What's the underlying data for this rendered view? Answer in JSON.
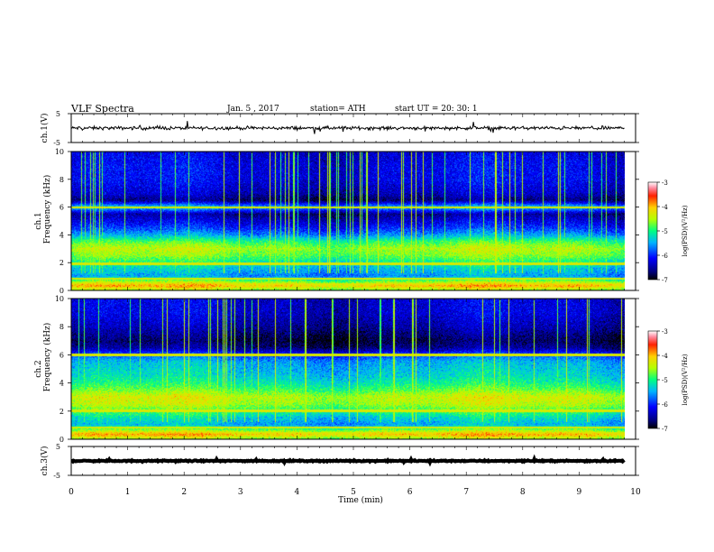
{
  "header": {
    "title": "VLF  Spectra",
    "date": "Jan.  5  , 2017",
    "station": "station= ATH",
    "start": "start  UT  =    20: 30: 1"
  },
  "axis_labels": {
    "ch1_wave": "ch.1(V)",
    "ch1_spec": [
      "ch.1",
      "Frequency  (kHz)"
    ],
    "ch2_spec": [
      "ch.2",
      "Frequency  (kHz)"
    ],
    "ch3_wave": "ch.3(V)",
    "time": "Time  (min)",
    "colorbar": "log(PSD)(V²/Hz)"
  },
  "chart_data": [
    {
      "type": "line",
      "name_label": "ch.1(V)",
      "xlabel": "Time  (min)",
      "ylabel": "ch.1(V)",
      "xlim": [
        0,
        10
      ],
      "ylim": [
        -5,
        5
      ],
      "yticks": [
        -5,
        5
      ],
      "data_span": [
        0,
        9.8
      ],
      "level": 0,
      "amplitude": 1.2
    },
    {
      "type": "heatmap",
      "ylabel": "ch.1 Frequency  (kHz)",
      "xlim": [
        0,
        10
      ],
      "ylim": [
        0,
        10
      ],
      "yticks": [
        0,
        2,
        4,
        6,
        8,
        10
      ],
      "data_span": [
        0,
        9.8
      ],
      "colorbar": {
        "label": "log(PSD)(V²/Hz)",
        "range": [
          -7,
          -3
        ],
        "ticks": [
          -3,
          -4,
          -5,
          -6,
          -7
        ]
      },
      "freq_profile": [
        {
          "f": 0.0,
          "v": -4.6
        },
        {
          "f": 0.3,
          "v": -4.0
        },
        {
          "f": 0.6,
          "v": -4.6
        },
        {
          "f": 1.0,
          "v": -5.6
        },
        {
          "f": 1.5,
          "v": -5.4
        },
        {
          "f": 2.0,
          "v": -5.1
        },
        {
          "f": 2.5,
          "v": -4.7
        },
        {
          "f": 3.0,
          "v": -4.5
        },
        {
          "f": 3.5,
          "v": -4.9
        },
        {
          "f": 4.0,
          "v": -5.6
        },
        {
          "f": 4.5,
          "v": -6.0
        },
        {
          "f": 5.0,
          "v": -6.3
        },
        {
          "f": 5.5,
          "v": -6.6
        },
        {
          "f": 6.0,
          "v": -5.4
        },
        {
          "f": 6.5,
          "v": -6.7
        },
        {
          "f": 7.0,
          "v": -6.4
        },
        {
          "f": 8.0,
          "v": -6.2
        },
        {
          "f": 9.0,
          "v": -6.2
        },
        {
          "f": 10.0,
          "v": -6.3
        }
      ],
      "tone_lines_khz": [
        0.4,
        0.8,
        6.0,
        1.9
      ]
    },
    {
      "type": "heatmap",
      "ylabel": "ch.2 Frequency  (kHz)",
      "xlim": [
        0,
        10
      ],
      "ylim": [
        0,
        10
      ],
      "yticks": [
        0,
        2,
        4,
        6,
        8,
        10
      ],
      "data_span": [
        0,
        9.8
      ],
      "colorbar": {
        "label": "log(PSD)(V²/Hz)",
        "range": [
          -7,
          -3
        ],
        "ticks": [
          -3,
          -4,
          -5,
          -6,
          -7
        ]
      },
      "freq_profile": [
        {
          "f": 0.0,
          "v": -4.6
        },
        {
          "f": 0.3,
          "v": -4.0
        },
        {
          "f": 0.6,
          "v": -4.6
        },
        {
          "f": 1.0,
          "v": -5.5
        },
        {
          "f": 1.5,
          "v": -5.3
        },
        {
          "f": 2.0,
          "v": -4.9
        },
        {
          "f": 2.5,
          "v": -4.5
        },
        {
          "f": 3.0,
          "v": -4.4
        },
        {
          "f": 3.5,
          "v": -4.8
        },
        {
          "f": 4.0,
          "v": -5.1
        },
        {
          "f": 4.5,
          "v": -5.3
        },
        {
          "f": 5.0,
          "v": -5.4
        },
        {
          "f": 5.5,
          "v": -5.5
        },
        {
          "f": 6.0,
          "v": -5.9
        },
        {
          "f": 6.5,
          "v": -6.6
        },
        {
          "f": 7.0,
          "v": -6.8
        },
        {
          "f": 8.0,
          "v": -6.5
        },
        {
          "f": 9.0,
          "v": -6.3
        },
        {
          "f": 10.0,
          "v": -6.3
        }
      ],
      "tone_lines_khz": [
        0.4,
        0.8,
        2.0,
        6.0
      ]
    },
    {
      "type": "line",
      "name_label": "ch.3(V)",
      "xlabel": "Time  (min)",
      "ylabel": "ch.3(V)",
      "xlim": [
        0,
        10
      ],
      "ylim": [
        -5,
        5
      ],
      "yticks": [
        -5,
        5
      ],
      "xticks": [
        0,
        1,
        2,
        3,
        4,
        5,
        6,
        7,
        8,
        9,
        10
      ],
      "data_span": [
        0,
        9.8
      ],
      "level": 0,
      "amplitude": 0.4
    }
  ]
}
